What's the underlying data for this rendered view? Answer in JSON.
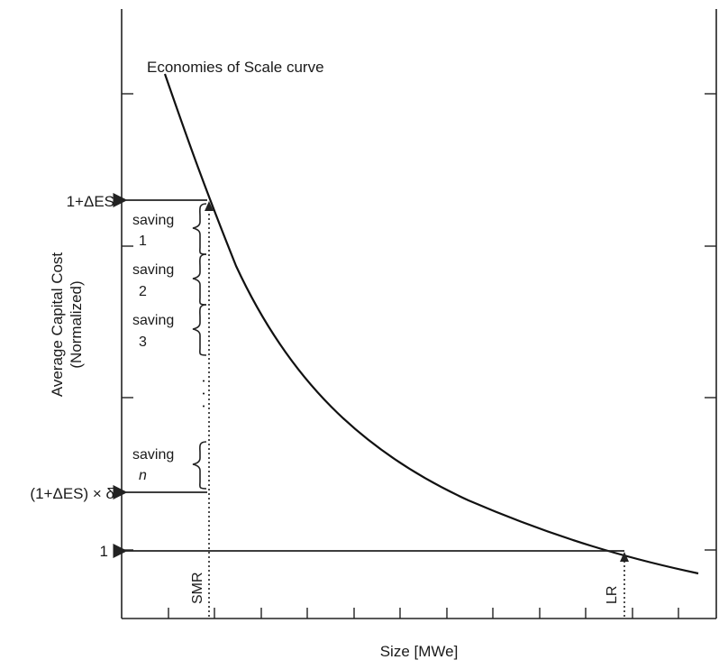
{
  "curve_label": "Economies of Scale curve",
  "y_axis_title_line1": "Average Capital Cost",
  "y_axis_title_line2": "(Normalized)",
  "x_axis_title": "Size [MWe]",
  "y_labels": {
    "top": "1+ΔES",
    "mid_left": "(1+ΔES) × δ",
    "bottom": "1"
  },
  "vertical_labels": {
    "smr": "SMR",
    "lr": "LR"
  },
  "savings": [
    {
      "word": "saving",
      "index": "1"
    },
    {
      "word": "saving",
      "index": "2"
    },
    {
      "word": "saving",
      "index": "3"
    },
    {
      "word": "saving",
      "index": "n"
    }
  ],
  "ellipsis": ". . ."
}
